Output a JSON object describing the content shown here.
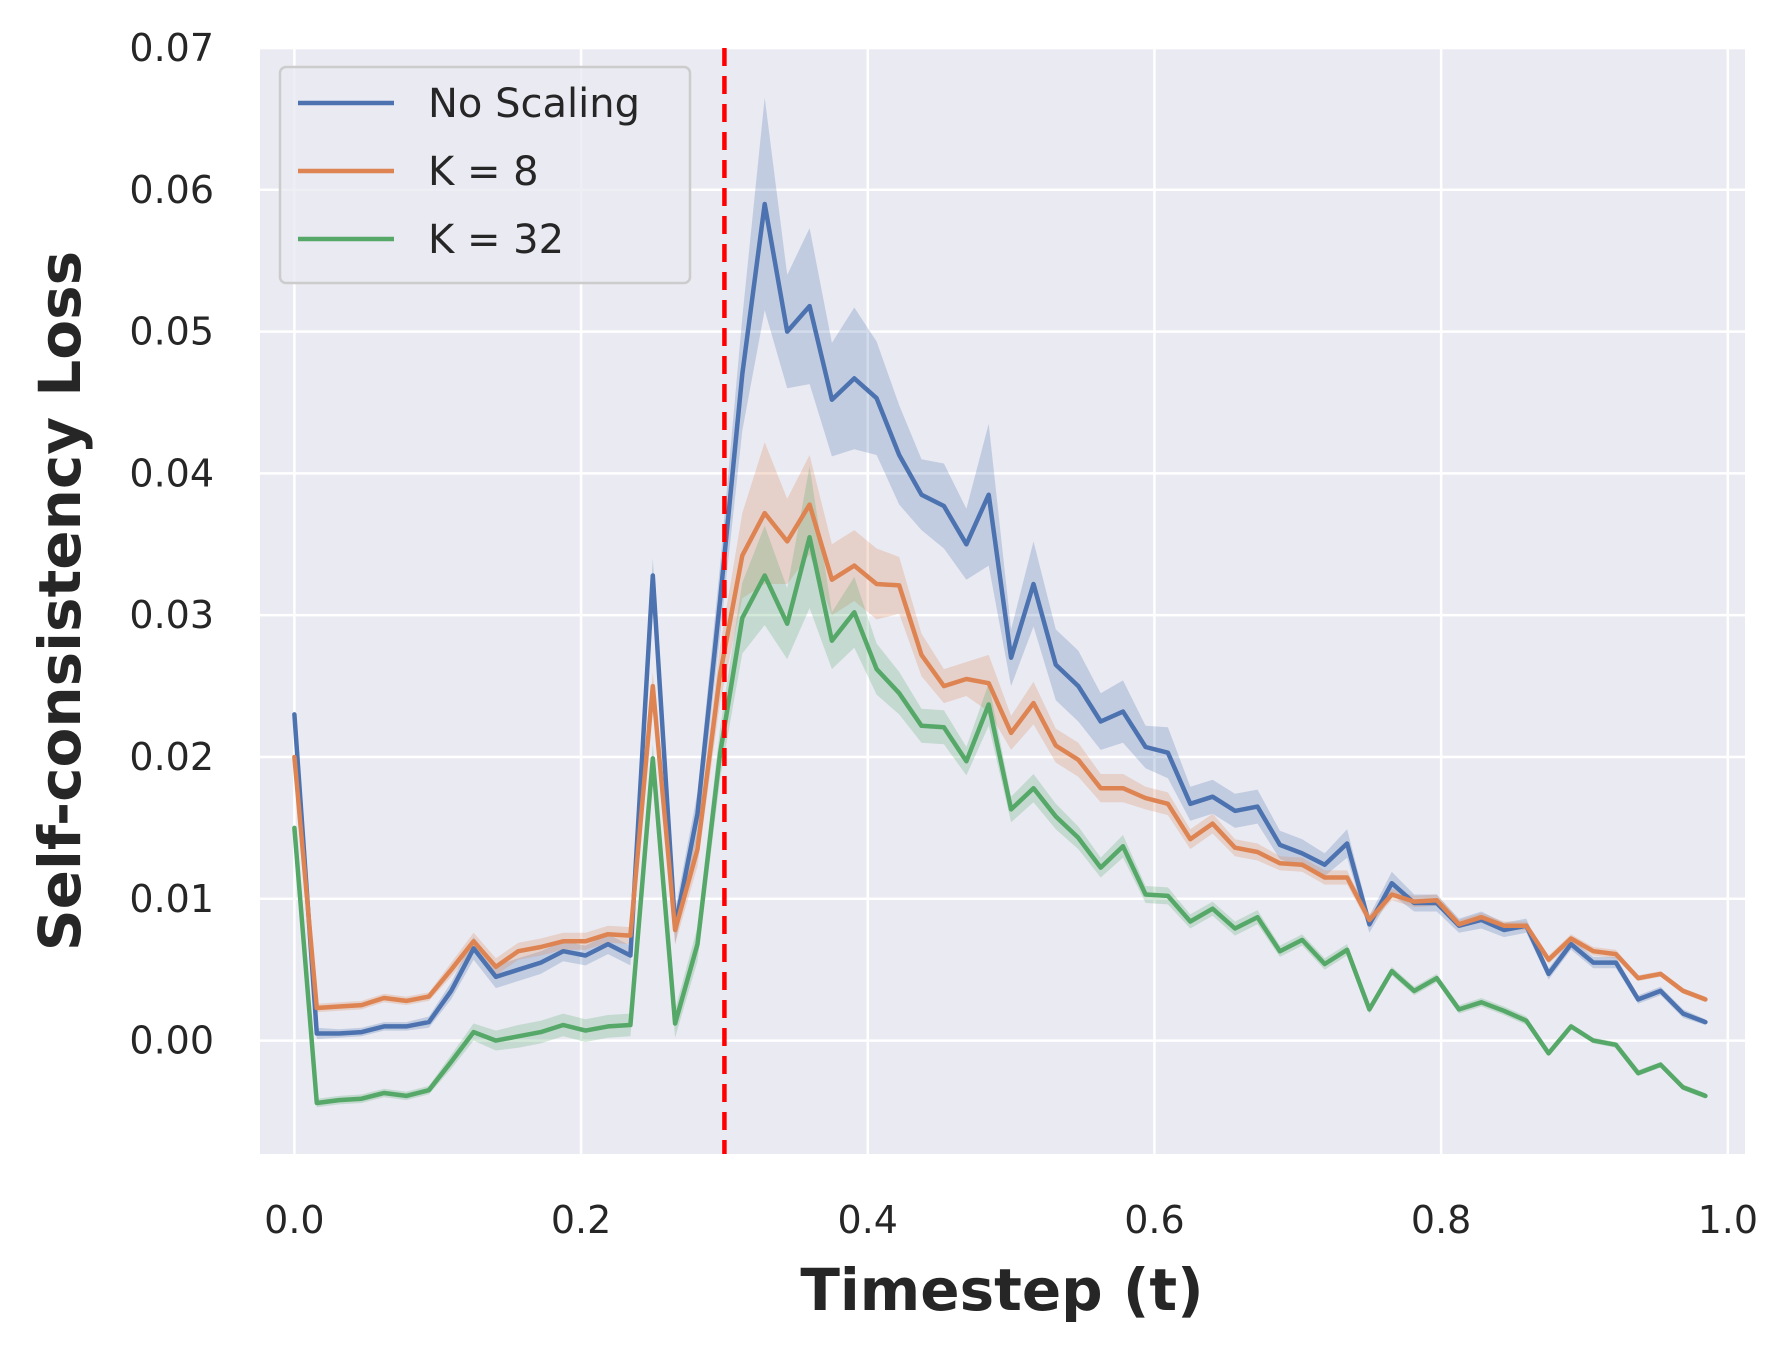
{
  "chart_data": {
    "type": "line",
    "title": "",
    "xlabel": "Timestep (t)",
    "ylabel": "Self-consistency Loss",
    "xlim": [
      -0.024,
      1.012
    ],
    "ylim": [
      -0.008,
      0.07
    ],
    "xticks": [
      "0.0",
      "0.2",
      "0.4",
      "0.6",
      "0.8",
      "1.0"
    ],
    "xtick_values": [
      0.0,
      0.2,
      0.4,
      0.6,
      0.8,
      1.0
    ],
    "yticks": [
      "0.00",
      "0.01",
      "0.02",
      "0.03",
      "0.04",
      "0.05",
      "0.06",
      "0.07"
    ],
    "ytick_values": [
      0.0,
      0.01,
      0.02,
      0.03,
      0.04,
      0.05,
      0.06,
      0.07
    ],
    "grid": true,
    "legend_position": "top-left",
    "reference_line": {
      "x": 0.3,
      "color": "#ff0000",
      "style": "dashed"
    },
    "x": [
      0.0,
      0.0156,
      0.0312,
      0.0469,
      0.0625,
      0.0781,
      0.0938,
      0.1094,
      0.125,
      0.1406,
      0.1562,
      0.1719,
      0.1875,
      0.2031,
      0.2188,
      0.2344,
      0.25,
      0.2656,
      0.2812,
      0.2969,
      0.3125,
      0.3281,
      0.3438,
      0.3594,
      0.375,
      0.3906,
      0.4062,
      0.4219,
      0.4375,
      0.4531,
      0.4688,
      0.4844,
      0.5,
      0.5156,
      0.5312,
      0.5469,
      0.5625,
      0.5781,
      0.5938,
      0.6094,
      0.625,
      0.6406,
      0.6562,
      0.6719,
      0.6875,
      0.7031,
      0.7188,
      0.7344,
      0.75,
      0.7656,
      0.7812,
      0.7969,
      0.8125,
      0.8281,
      0.8438,
      0.8594,
      0.875,
      0.8906,
      0.9062,
      0.9219,
      0.9375,
      0.9531,
      0.9688,
      0.9844
    ],
    "series": [
      {
        "name": "No Scaling",
        "color": "#4c72b0",
        "values": [
          0.023,
          0.0005,
          0.0005,
          0.0006,
          0.001,
          0.001,
          0.0013,
          0.0035,
          0.0065,
          0.0045,
          0.005,
          0.0055,
          0.0063,
          0.006,
          0.0068,
          0.006,
          0.0328,
          0.008,
          0.016,
          0.031,
          0.047,
          0.059,
          0.05,
          0.0518,
          0.0452,
          0.0467,
          0.0453,
          0.0413,
          0.0385,
          0.0377,
          0.035,
          0.0385,
          0.027,
          0.0322,
          0.0265,
          0.025,
          0.0225,
          0.0232,
          0.0207,
          0.0203,
          0.0167,
          0.0172,
          0.0162,
          0.0165,
          0.0138,
          0.0132,
          0.0124,
          0.0139,
          0.0082,
          0.0111,
          0.0097,
          0.0097,
          0.0081,
          0.0085,
          0.0078,
          0.0081,
          0.0047,
          0.0068,
          0.0055,
          0.0055,
          0.0029,
          0.0035,
          0.0019,
          0.0013
        ],
        "band": [
          0.0,
          0.0004,
          0.0003,
          0.0003,
          0.0003,
          0.0003,
          0.0004,
          0.0006,
          0.0008,
          0.0008,
          0.0008,
          0.0008,
          0.0007,
          0.0007,
          0.0007,
          0.0007,
          0.0012,
          0.0012,
          0.0015,
          0.0025,
          0.004,
          0.0075,
          0.004,
          0.0055,
          0.004,
          0.005,
          0.004,
          0.0035,
          0.0025,
          0.003,
          0.0025,
          0.005,
          0.002,
          0.003,
          0.0025,
          0.0025,
          0.002,
          0.0022,
          0.0015,
          0.0018,
          0.0012,
          0.0012,
          0.0012,
          0.0012,
          0.001,
          0.001,
          0.0008,
          0.001,
          0.0006,
          0.0008,
          0.0006,
          0.0006,
          0.0005,
          0.0006,
          0.0005,
          0.0005,
          0.0004,
          0.0004,
          0.0004,
          0.0004,
          0.0003,
          0.0003,
          0.0003,
          0.0002
        ]
      },
      {
        "name": "K = 8",
        "color": "#dd8452",
        "values": [
          0.02,
          0.0023,
          0.0024,
          0.0025,
          0.003,
          0.0028,
          0.0031,
          0.005,
          0.007,
          0.0052,
          0.0063,
          0.0066,
          0.007,
          0.007,
          0.0075,
          0.0074,
          0.025,
          0.0078,
          0.0135,
          0.0258,
          0.0342,
          0.0372,
          0.0352,
          0.0378,
          0.0325,
          0.0335,
          0.0322,
          0.0321,
          0.0272,
          0.025,
          0.0255,
          0.0252,
          0.0217,
          0.0238,
          0.0208,
          0.0198,
          0.0178,
          0.0178,
          0.0171,
          0.0167,
          0.0142,
          0.0153,
          0.0136,
          0.0133,
          0.0125,
          0.0124,
          0.0115,
          0.0115,
          0.0085,
          0.0103,
          0.0098,
          0.0099,
          0.0082,
          0.0087,
          0.0081,
          0.0081,
          0.0057,
          0.0072,
          0.0063,
          0.0061,
          0.0044,
          0.0047,
          0.0035,
          0.0029
        ],
        "band": [
          0.0,
          0.0003,
          0.0003,
          0.0003,
          0.0003,
          0.0003,
          0.0003,
          0.0005,
          0.0006,
          0.0006,
          0.0006,
          0.0006,
          0.0006,
          0.0006,
          0.0006,
          0.0006,
          0.001,
          0.001,
          0.0012,
          0.002,
          0.003,
          0.005,
          0.003,
          0.0035,
          0.0025,
          0.0025,
          0.0025,
          0.002,
          0.0015,
          0.0012,
          0.0012,
          0.002,
          0.0012,
          0.0015,
          0.0012,
          0.0012,
          0.001,
          0.001,
          0.0008,
          0.0008,
          0.0007,
          0.0007,
          0.0006,
          0.0006,
          0.0005,
          0.0005,
          0.0005,
          0.0005,
          0.0004,
          0.0004,
          0.0004,
          0.0004,
          0.0003,
          0.0003,
          0.0003,
          0.0003,
          0.0003,
          0.0003,
          0.0003,
          0.0003,
          0.0002,
          0.0002,
          0.0002,
          0.0002
        ]
      },
      {
        "name": "K = 32",
        "color": "#55a868",
        "values": [
          0.015,
          -0.0044,
          -0.0042,
          -0.0041,
          -0.0037,
          -0.0039,
          -0.0035,
          -0.0015,
          0.0006,
          0.0,
          0.0003,
          0.0006,
          0.0011,
          0.0007,
          0.001,
          0.0011,
          0.0199,
          0.0012,
          0.0068,
          0.0202,
          0.0298,
          0.0328,
          0.0294,
          0.0355,
          0.0282,
          0.0302,
          0.0262,
          0.0245,
          0.0222,
          0.0221,
          0.0197,
          0.0237,
          0.0163,
          0.0178,
          0.0158,
          0.0143,
          0.0122,
          0.0137,
          0.0103,
          0.0102,
          0.0084,
          0.0093,
          0.0079,
          0.0087,
          0.0063,
          0.0071,
          0.0054,
          0.0064,
          0.0022,
          0.0049,
          0.0035,
          0.0044,
          0.0022,
          0.0027,
          0.0021,
          0.0014,
          -0.0009,
          0.001,
          0.0,
          -0.0003,
          -0.0023,
          -0.0017,
          -0.0033,
          -0.0039
        ],
        "band": [
          0.0,
          0.0003,
          0.0003,
          0.0003,
          0.0003,
          0.0003,
          0.0003,
          0.0005,
          0.0006,
          0.0007,
          0.0008,
          0.0008,
          0.0008,
          0.0008,
          0.0008,
          0.0008,
          0.001,
          0.001,
          0.0012,
          0.0018,
          0.0025,
          0.0035,
          0.0025,
          0.005,
          0.002,
          0.0025,
          0.0018,
          0.0015,
          0.0012,
          0.0012,
          0.001,
          0.0015,
          0.0009,
          0.001,
          0.0009,
          0.0008,
          0.0007,
          0.0008,
          0.0006,
          0.0006,
          0.0005,
          0.0005,
          0.0005,
          0.0005,
          0.0004,
          0.0004,
          0.0004,
          0.0004,
          0.0003,
          0.0003,
          0.0003,
          0.0003,
          0.0003,
          0.0003,
          0.0003,
          0.0003,
          0.0002,
          0.0002,
          0.0002,
          0.0002,
          0.0002,
          0.0002,
          0.0002,
          0.0002
        ]
      }
    ]
  }
}
